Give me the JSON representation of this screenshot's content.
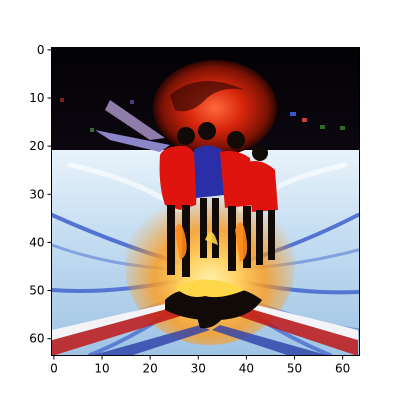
{
  "chart_data": {
    "type": "image",
    "image_size": [
      64,
      64
    ],
    "extent": [
      -0.5,
      63.5,
      63.5,
      -0.5
    ],
    "xlim": [
      -0.5,
      63.5
    ],
    "ylim": [
      63.5,
      -0.5
    ],
    "x_ticks": [
      0,
      10,
      20,
      30,
      40,
      50,
      60
    ],
    "y_ticks": [
      0,
      10,
      20,
      30,
      40,
      50,
      60
    ],
    "x_tick_labels": [
      "0",
      "10",
      "20",
      "30",
      "40",
      "50",
      "60"
    ],
    "y_tick_labels": [
      "0",
      "10",
      "20",
      "30",
      "40",
      "50",
      "60"
    ],
    "title": "",
    "xlabel": "",
    "ylabel": "",
    "grid": false,
    "colors": {
      "sky": "#050308",
      "sun_outer": "#7a1204",
      "sun_inner": "#d8260c",
      "sun_core": "#ff5a2a",
      "ice": "#cfe6f6",
      "ice_dark": "#8db9dc",
      "streak_blue": "#2c4fc8",
      "glow_yellow": "#ffe07a",
      "glow_orange": "#ff9a1a",
      "figure_red": "#e0140e",
      "figure_blue": "#2a2fa8",
      "shadow": "#120a06",
      "stripe_red": "#c01818",
      "stripe_white": "#f4f4f8"
    }
  }
}
